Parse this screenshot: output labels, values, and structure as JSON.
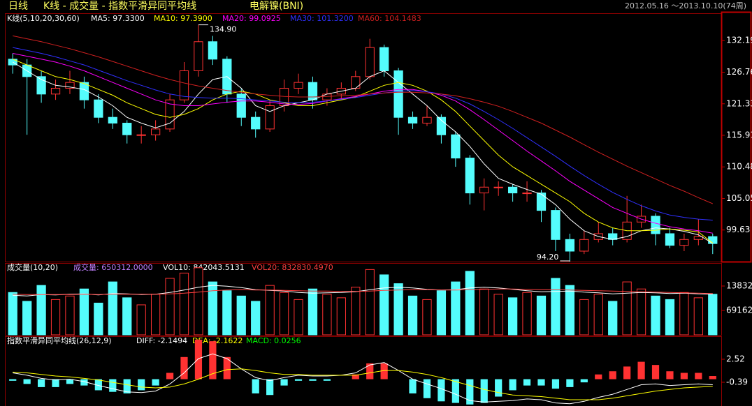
{
  "header": {
    "period": "日线",
    "view": "K线 - 成交量 - 指数平滑异同平均线",
    "symbol": "电解镍(BNI)",
    "range": "2012.05.16 ～2013.10.10(74周)"
  },
  "chart_data": [
    {
      "type": "candlestick",
      "title": "K线(5,10,20,30,60)",
      "up_color": "#ff3232",
      "down_color": "#54fcfc",
      "ohlc": [
        [
          129,
          130,
          126.5,
          128
        ],
        [
          128,
          129,
          116,
          126
        ],
        [
          126,
          127,
          121.5,
          123
        ],
        [
          123,
          125.5,
          122,
          124
        ],
        [
          124,
          127,
          123,
          125
        ],
        [
          125,
          126,
          120.5,
          122
        ],
        [
          122,
          123,
          118,
          119
        ],
        [
          119,
          120.5,
          117,
          118
        ],
        [
          118,
          118.5,
          114.5,
          116
        ],
        [
          116,
          117.5,
          114.5,
          116
        ],
        [
          116,
          118.5,
          115,
          117
        ],
        [
          117,
          123,
          116.5,
          122
        ],
        [
          122,
          128.5,
          121.5,
          127
        ],
        [
          127,
          134.9,
          126,
          132
        ],
        [
          132,
          133,
          128,
          129
        ],
        [
          129,
          129.5,
          121.5,
          123
        ],
        [
          123,
          124,
          117.5,
          119
        ],
        [
          119,
          120,
          115.5,
          117
        ],
        [
          117,
          122,
          116.5,
          121
        ],
        [
          121,
          125.5,
          120,
          124
        ],
        [
          124,
          126.5,
          123,
          125
        ],
        [
          125,
          126,
          120.5,
          122
        ],
        [
          122,
          124,
          121,
          123
        ],
        [
          123,
          125,
          122,
          124
        ],
        [
          124,
          127,
          123.5,
          126
        ],
        [
          126,
          132.5,
          125.5,
          131
        ],
        [
          131,
          131.5,
          126,
          127
        ],
        [
          127,
          127.5,
          116,
          119
        ],
        [
          119,
          120,
          117,
          118
        ],
        [
          118,
          121,
          117.5,
          119
        ],
        [
          119,
          119.5,
          114.5,
          116
        ],
        [
          116,
          116.5,
          110.5,
          112
        ],
        [
          112,
          112.5,
          104,
          106
        ],
        [
          106,
          108.5,
          103,
          107
        ],
        [
          107,
          108,
          105.5,
          107
        ],
        [
          107,
          107.5,
          104.5,
          106
        ],
        [
          106,
          108,
          104.5,
          106
        ],
        [
          106,
          106.5,
          101,
          103
        ],
        [
          103,
          103.5,
          96,
          98
        ],
        [
          98,
          99,
          94.2,
          96
        ],
        [
          96,
          99.5,
          95.5,
          98
        ],
        [
          98,
          101,
          97.5,
          99
        ],
        [
          99,
          100,
          97,
          98
        ],
        [
          98,
          105.5,
          97.5,
          101
        ],
        [
          101,
          104,
          100,
          102
        ],
        [
          102,
          102.5,
          97,
          99
        ],
        [
          99,
          100,
          96.5,
          97
        ],
        [
          97,
          99,
          96,
          98
        ],
        [
          98,
          101.5,
          97,
          98.5
        ],
        [
          98.5,
          99,
          95.5,
          97.3
        ]
      ],
      "series": [
        {
          "name": "MA5: 97.3300",
          "color": "#ffffff",
          "values": [
            128.5,
            127,
            125.5,
            124.5,
            124.2,
            123.8,
            122.5,
            121,
            119,
            118,
            117.2,
            118,
            120,
            123,
            125.5,
            126,
            124,
            121,
            120,
            121,
            121.5,
            122,
            123,
            123.5,
            124,
            126,
            127,
            125,
            123,
            121,
            118.5,
            116.5,
            114,
            111,
            108.5,
            107.5,
            106.6,
            105.8,
            104,
            101.5,
            99.5,
            98.5,
            98,
            98.5,
            99.5,
            100,
            99.8,
            99.4,
            98.8,
            97.33
          ]
        },
        {
          "name": "MA10: 97.3900",
          "color": "#ffff00",
          "values": [
            129,
            128,
            127,
            126,
            125.5,
            124.8,
            123.8,
            122.8,
            121.5,
            120.5,
            119.5,
            119,
            119.5,
            120.5,
            122,
            123,
            123.5,
            123,
            122,
            121.5,
            121,
            121,
            121.5,
            122,
            122.5,
            123.5,
            124.5,
            125,
            124.5,
            123.5,
            122,
            120,
            117.5,
            115,
            112.5,
            110.5,
            109,
            107.5,
            106,
            104.5,
            102.5,
            101,
            100,
            99.5,
            99.5,
            99.6,
            99.8,
            99.6,
            99.3,
            97.39
          ]
        },
        {
          "name": "MA20: 99.0925",
          "color": "#ff00ff",
          "values": [
            130,
            129.5,
            129,
            128.5,
            127.8,
            127,
            126,
            125,
            124,
            123,
            122,
            121.3,
            121,
            121,
            121.3,
            121.6,
            121.8,
            121.8,
            121.6,
            121.3,
            121.2,
            121.4,
            121.8,
            122.2,
            122.6,
            123,
            123.5,
            123.8,
            123.8,
            123.4,
            122.8,
            121.8,
            120.3,
            118.6,
            116.8,
            115,
            113.2,
            111.5,
            109.8,
            108,
            106.5,
            105,
            103.5,
            102.5,
            101.5,
            100.8,
            100.2,
            99.8,
            99.5,
            99.09
          ]
        },
        {
          "name": "MA30: 101.3200",
          "color": "#3030ff",
          "values": [
            131,
            130.5,
            130,
            129.4,
            128.7,
            128,
            127.1,
            126.2,
            125.3,
            124.5,
            123.7,
            123,
            122.6,
            122.4,
            122.3,
            122.3,
            122.2,
            122,
            121.8,
            121.6,
            121.5,
            121.6,
            121.8,
            122.1,
            122.4,
            122.8,
            123.2,
            123.5,
            123.6,
            123.4,
            123,
            122.3,
            121.3,
            120,
            118.6,
            117.1,
            115.5,
            113.9,
            112.3,
            110.6,
            109,
            107.5,
            106.1,
            104.9,
            103.8,
            102.9,
            102.2,
            101.8,
            101.5,
            101.32
          ]
        },
        {
          "name": "MA60: 104.1483",
          "color": "#d02020",
          "values": [
            133,
            132.5,
            132,
            131.4,
            130.8,
            130.1,
            129.4,
            128.6,
            127.8,
            127,
            126.2,
            125.5,
            124.9,
            124.4,
            124,
            123.6,
            123.3,
            123,
            122.8,
            122.6,
            122.5,
            122.5,
            122.6,
            122.7,
            122.8,
            123,
            123.2,
            123.3,
            123.3,
            123.2,
            123,
            122.7,
            122.2,
            121.6,
            120.9,
            120,
            119,
            118,
            116.8,
            115.6,
            114.3,
            113,
            111.8,
            110.6,
            109.5,
            108.4,
            107.3,
            106.3,
            105.2,
            104.15
          ]
        }
      ],
      "high_label": "134.90",
      "low_label": "94.20",
      "ylim": [
        94.2,
        136.77
      ],
      "yticks": [
        99.63,
        105.05,
        110.48,
        115.91,
        121.33,
        126.76,
        132.19
      ]
    },
    {
      "type": "bar",
      "title": "成交量(10,20)",
      "bar_name": "成交量: 650312.0000",
      "bar_name_color": "#c080ff",
      "values": [
        120000,
        95000,
        140000,
        100000,
        110000,
        130000,
        90000,
        150000,
        105000,
        85000,
        115000,
        160000,
        175000,
        190000,
        150000,
        125000,
        110000,
        95000,
        140000,
        120000,
        100000,
        130000,
        115000,
        105000,
        135000,
        185000,
        170000,
        145000,
        110000,
        100000,
        125000,
        150000,
        180000,
        130000,
        115000,
        105000,
        120000,
        110000,
        160000,
        140000,
        100000,
        115000,
        95000,
        150000,
        130000,
        110000,
        100000,
        120000,
        105000,
        115000
      ],
      "series": [
        {
          "name": "VOL10: 842043.5131",
          "color": "#ffffff",
          "values": [
            112000,
            110000,
            114000,
            113000,
            115000,
            116000,
            113000,
            117000,
            116000,
            114000,
            115000,
            120000,
            127000,
            135000,
            140000,
            138000,
            134000,
            128000,
            126000,
            124000,
            120000,
            118000,
            119000,
            120000,
            122000,
            128000,
            133000,
            135000,
            133000,
            129000,
            127000,
            128000,
            133000,
            135000,
            133000,
            129000,
            125000,
            122000,
            123000,
            124000,
            121000,
            119000,
            116000,
            118000,
            120000,
            119000,
            117000,
            118000,
            116000,
            115000
          ]
        },
        {
          "name": "VOL20: 832830.4970",
          "color": "#ff4040",
          "values": [
            115000,
            114000,
            114000,
            114000,
            114000,
            115000,
            114000,
            115000,
            115000,
            115000,
            115000,
            116000,
            118000,
            121000,
            125000,
            127000,
            128000,
            127000,
            127000,
            126000,
            125000,
            124000,
            124000,
            123000,
            123000,
            124000,
            126000,
            127000,
            128000,
            128000,
            127000,
            127000,
            128000,
            129000,
            130000,
            130000,
            129000,
            128000,
            128000,
            127000,
            126000,
            125000,
            124000,
            123000,
            122000,
            121000,
            120000,
            119000,
            118000,
            117000
          ]
        }
      ],
      "ylim": [
        0,
        201550
      ],
      "yticks": [
        69162,
        138324
      ]
    },
    {
      "type": "macd",
      "title": "指数平滑异同平均线(26,12,9)",
      "hist_name": "MACD: 0.0256",
      "hist_name_color": "#00ff00",
      "hist": [
        -0.2,
        -0.6,
        -1.0,
        -1.0,
        -0.6,
        -0.8,
        -1.4,
        -1.6,
        -1.8,
        -1.4,
        -0.8,
        0.8,
        2.8,
        5.0,
        4.8,
        2.8,
        0,
        -1.8,
        -2.0,
        -0.8,
        -0.2,
        -0.2,
        -0.2,
        0,
        0.6,
        2.0,
        2.0,
        0,
        -1.8,
        -2.4,
        -2.8,
        -3.0,
        -3.2,
        -3.0,
        -2.2,
        -1.4,
        -0.8,
        -0.8,
        -1.2,
        -1.0,
        -0.4,
        0.6,
        1.0,
        1.6,
        2.2,
        1.8,
        1.0,
        0.8,
        0.8,
        0.4
      ],
      "series": [
        {
          "name": "DIFF: -2.1494",
          "color": "#ffffff",
          "values": [
            0.8,
            0.5,
            0.1,
            -0.1,
            0,
            -0.3,
            -0.8,
            -1.2,
            -1.6,
            -1.7,
            -1.5,
            -0.6,
            0.8,
            2.6,
            3.2,
            2.6,
            1.3,
            0.2,
            -0.2,
            0.2,
            0.5,
            0.4,
            0.4,
            0.5,
            0.8,
            1.8,
            2.1,
            1.1,
            0,
            -0.6,
            -1.2,
            -1.9,
            -2.7,
            -2.9,
            -2.8,
            -2.7,
            -2.5,
            -2.6,
            -3.0,
            -3.1,
            -2.8,
            -2.3,
            -1.9,
            -1.3,
            -0.7,
            -0.6,
            -0.8,
            -0.7,
            -0.6,
            -0.7
          ]
        },
        {
          "name": "DEA: -2.1622",
          "color": "#ffff00",
          "values": [
            0.9,
            0.8,
            0.6,
            0.4,
            0.3,
            0.1,
            -0.1,
            -0.4,
            -0.7,
            -1,
            -1.1,
            -1.0,
            -0.6,
            0,
            0.7,
            1.2,
            1.3,
            1.1,
            0.8,
            0.6,
            0.6,
            0.5,
            0.5,
            0.5,
            0.5,
            0.8,
            1.1,
            1.1,
            0.9,
            0.6,
            0.2,
            -0.3,
            -0.8,
            -1.3,
            -1.7,
            -2,
            -2.1,
            -2.2,
            -2.4,
            -2.6,
            -2.6,
            -2.6,
            -2.4,
            -2.1,
            -1.8,
            -1.5,
            -1.3,
            -1.1,
            -1.0,
            -0.9
          ]
        }
      ],
      "ylim": [
        -3.39,
        5.34
      ],
      "yticks": [
        -0.39,
        2.52
      ]
    }
  ]
}
